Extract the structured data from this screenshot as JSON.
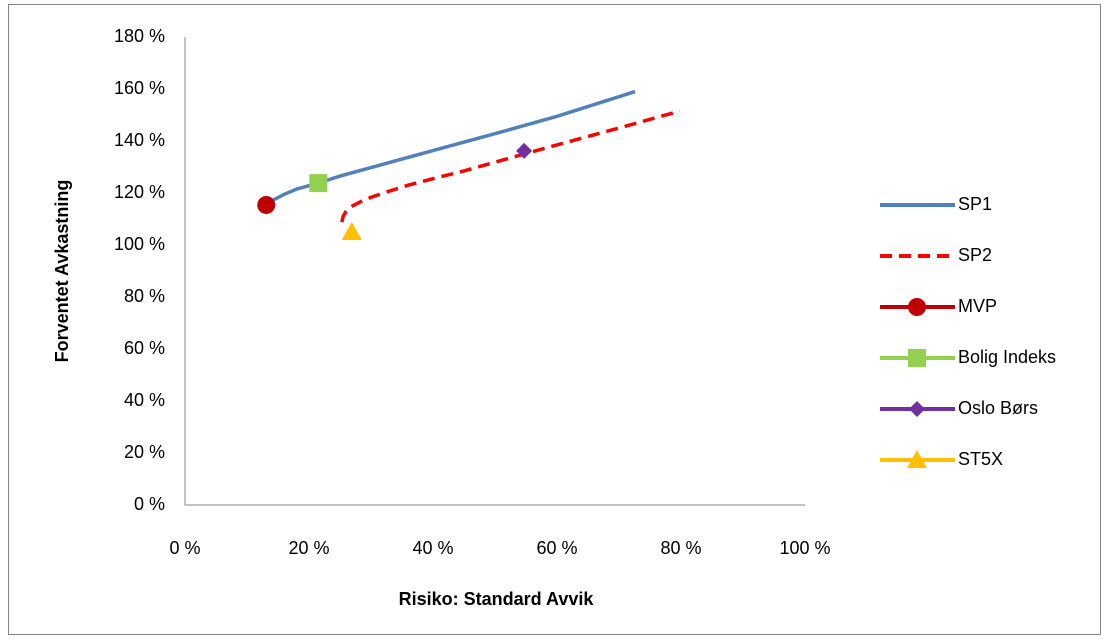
{
  "chart_data": {
    "type": "scatter",
    "x_label": "Risiko: Standard Avvik",
    "y_label": "Forventet Avkastning",
    "xlim": [
      0,
      100
    ],
    "ylim": [
      0,
      180
    ],
    "xticks": [
      {
        "value": 0,
        "label": "0 %"
      },
      {
        "value": 20,
        "label": "20 %"
      },
      {
        "value": 40,
        "label": "40 %"
      },
      {
        "value": 60,
        "label": "60 %"
      },
      {
        "value": 80,
        "label": "80 %"
      },
      {
        "value": 100,
        "label": "100 %"
      }
    ],
    "yticks": [
      {
        "value": 0,
        "label": "0 %"
      },
      {
        "value": 20,
        "label": "20 %"
      },
      {
        "value": 40,
        "label": "40 %"
      },
      {
        "value": 60,
        "label": "60 %"
      },
      {
        "value": 80,
        "label": "80 %"
      },
      {
        "value": 100,
        "label": "100 %"
      },
      {
        "value": 120,
        "label": "120 %"
      },
      {
        "value": 140,
        "label": "140 %"
      },
      {
        "value": 160,
        "label": "160 %"
      },
      {
        "value": 180,
        "label": "180 %"
      }
    ],
    "grid": false,
    "legend": "right",
    "series": [
      {
        "name": "SP1",
        "color": "#4f81bd",
        "dash": false,
        "marker": null,
        "x": [
          13.1,
          14,
          16,
          18,
          21.5,
          25,
          30,
          40,
          50,
          60,
          72.6
        ],
        "y": [
          115.4,
          117,
          119.5,
          121.5,
          123.8,
          126.5,
          129.8,
          136.3,
          142.8,
          149.5,
          159
        ]
      },
      {
        "name": "SP2",
        "color": "#ff0000",
        "dash": true,
        "marker": null,
        "x": [
          25.3,
          25.5,
          26,
          27,
          29,
          32,
          36,
          40,
          45,
          54.7,
          60,
          70,
          79.8
        ],
        "y": [
          108.8,
          111,
          113,
          115,
          117.5,
          120,
          123,
          125.5,
          128.5,
          135,
          138.5,
          145,
          151.5
        ]
      },
      {
        "name": "MVP",
        "color": "#c00000",
        "dash": false,
        "marker": "circle",
        "x": [
          13.1
        ],
        "y": [
          115.4
        ]
      },
      {
        "name": "Bolig Indeks",
        "color": "#92d050",
        "dash": false,
        "marker": "square",
        "x": [
          21.5
        ],
        "y": [
          123.8
        ]
      },
      {
        "name": "Oslo Børs",
        "color": "#7030a0",
        "dash": false,
        "marker": "diamond",
        "x": [
          54.7
        ],
        "y": [
          136.2
        ]
      },
      {
        "name": "ST5X",
        "color": "#ffc000",
        "dash": false,
        "marker": "triangle",
        "x": [
          26.9
        ],
        "y": [
          105
        ]
      }
    ]
  }
}
